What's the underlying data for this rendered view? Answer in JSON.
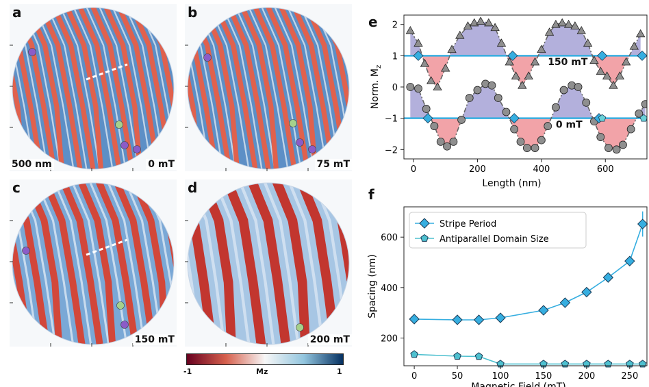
{
  "panels": [
    {
      "letter": "a",
      "scale_label": "500 nm",
      "field_label": "0 mT"
    },
    {
      "letter": "b",
      "scale_label": "",
      "field_label": "75 mT"
    },
    {
      "letter": "c",
      "scale_label": "",
      "field_label": "150 mT"
    },
    {
      "letter": "d",
      "scale_label": "",
      "field_label": "200 mT"
    }
  ],
  "colorbar": {
    "label": "Mz",
    "min_label": "-1",
    "max_label": "1",
    "colors": [
      "#67001f",
      "#d6604d",
      "#f7f7f7",
      "#92c5de",
      "#053061"
    ]
  },
  "chart_data": [
    {
      "panel": "e",
      "type": "line",
      "xlabel": "Length (nm)",
      "ylabel": "Norm. M_z",
      "xlim": [
        -30,
        730
      ],
      "ylim": [
        -2.3,
        2.3
      ],
      "xticks": [
        0,
        200,
        400,
        600
      ],
      "yticks": [
        -2,
        -1,
        0,
        1,
        2
      ],
      "annotations": [
        "150 mT",
        "0 mT"
      ],
      "colors": {
        "above": "#b3b0dc",
        "below": "#f2a3a8",
        "baseline": "#36aee0"
      },
      "series": [
        {
          "baseline": 1,
          "marker": "triangle",
          "x": [
            -10,
            15,
            35,
            55,
            75,
            100,
            120,
            145,
            170,
            190,
            210,
            235,
            255,
            275,
            300,
            320,
            340,
            360,
            380,
            400,
            425,
            445,
            465,
            485,
            505,
            525,
            545,
            565,
            585,
            605,
            625,
            645,
            665,
            690,
            710
          ],
          "y": [
            1.8,
            1.4,
            0.75,
            0.2,
            0.0,
            0.6,
            1.2,
            1.65,
            1.95,
            2.05,
            2.1,
            2.05,
            1.9,
            1.4,
            0.8,
            0.35,
            0.05,
            0.35,
            0.8,
            1.2,
            1.75,
            2.0,
            2.05,
            2.0,
            1.95,
            1.8,
            1.4,
            0.85,
            0.5,
            0.35,
            0.05,
            0.35,
            0.8,
            1.3,
            1.7
          ]
        },
        {
          "baseline": -1,
          "marker": "circle",
          "x": [
            -10,
            15,
            40,
            65,
            85,
            105,
            125,
            150,
            175,
            200,
            225,
            245,
            265,
            290,
            315,
            335,
            355,
            380,
            400,
            420,
            445,
            470,
            495,
            515,
            540,
            565,
            585,
            610,
            635,
            655,
            680,
            705,
            725
          ],
          "y": [
            0.0,
            -0.05,
            -0.7,
            -1.25,
            -1.75,
            -1.9,
            -1.75,
            -1.05,
            -0.35,
            -0.1,
            0.1,
            0.05,
            -0.35,
            -0.8,
            -1.35,
            -1.75,
            -1.95,
            -1.95,
            -1.7,
            -1.25,
            -0.65,
            -0.1,
            0.05,
            0.0,
            -0.5,
            -1.1,
            -1.6,
            -1.95,
            -2.0,
            -1.85,
            -1.35,
            -0.85,
            -0.55
          ]
        }
      ],
      "crossings": {
        "150mT_x": [
          15,
          310,
          590,
          715
        ],
        "0mT_x": [
          45,
          315,
          580
        ]
      }
    },
    {
      "panel": "f",
      "type": "line",
      "xlabel": "Magnetic Field (mT)",
      "ylabel": "Spacing (nm)",
      "xlim": [
        -12,
        270
      ],
      "ylim": [
        90,
        720
      ],
      "xticks": [
        0,
        50,
        100,
        150,
        200,
        250
      ],
      "yticks": [
        200,
        400,
        600
      ],
      "legend": "top-left",
      "series": [
        {
          "name": "Stripe Period",
          "marker": "diamond",
          "color": "#36aee0",
          "x": [
            0,
            50,
            75,
            100,
            150,
            175,
            200,
            225,
            250,
            265
          ],
          "y": [
            275,
            272,
            272,
            280,
            310,
            340,
            382,
            440,
            505,
            652
          ],
          "err": [
            0,
            0,
            0,
            0,
            0,
            0,
            0,
            0,
            0,
            50
          ]
        },
        {
          "name": "Antiparallel Domain Size",
          "marker": "pentagon",
          "color": "#4ec0cf",
          "x": [
            0,
            50,
            75,
            100,
            150,
            175,
            200,
            225,
            250,
            265
          ],
          "y": [
            135,
            128,
            127,
            97,
            97,
            97,
            97,
            97,
            97,
            97
          ]
        }
      ]
    }
  ]
}
